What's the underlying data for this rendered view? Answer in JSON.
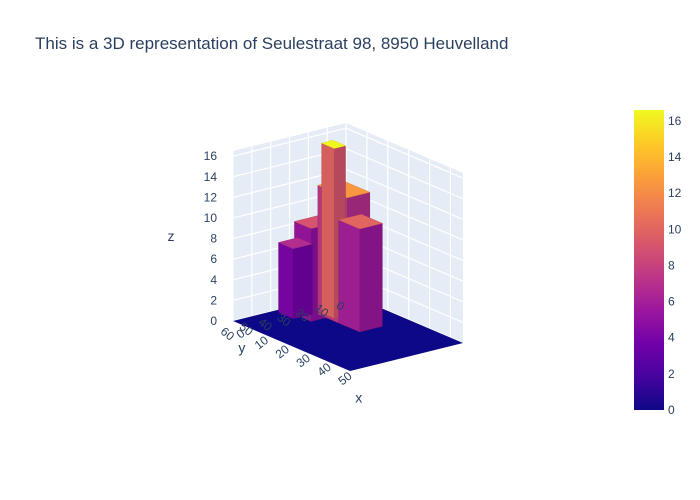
{
  "chart_data": {
    "type": "surface",
    "title": "This is a 3D representation of Seulestraat 98, 8950 Heuvelland",
    "xlabel": "x",
    "ylabel": "y",
    "zlabel": "z",
    "x_ticks": [
      "0",
      "10",
      "20",
      "30",
      "40",
      "50"
    ],
    "y_ticks": [
      "0",
      "10",
      "20",
      "30",
      "40",
      "50",
      "60"
    ],
    "z_ticks": [
      "0",
      "2",
      "4",
      "6",
      "8",
      "10",
      "12",
      "14",
      "16"
    ],
    "xlim": [
      0,
      56
    ],
    "ylim": [
      0,
      60
    ],
    "zlim": [
      0,
      16.5
    ],
    "colorbar": {
      "ticks": [
        "0",
        "2",
        "4",
        "6",
        "8",
        "10",
        "12",
        "14",
        "16"
      ],
      "range": [
        0,
        16.6
      ],
      "colorscale": [
        "#0d0887",
        "#46039f",
        "#7201a8",
        "#9c179e",
        "#bd3786",
        "#d8576b",
        "#ed7953",
        "#fb9f3a",
        "#fdca26",
        "#f0f921"
      ]
    },
    "surface_blocks": [
      {
        "name": "ground",
        "x": [
          0,
          56
        ],
        "y": [
          0,
          60
        ],
        "z": 0
      },
      {
        "name": "left-roof-low",
        "x": [
          2,
          9
        ],
        "y": [
          28,
          38
        ],
        "z": 6.8
      },
      {
        "name": "left-roof-ridge",
        "x": [
          6,
          14
        ],
        "y": [
          18,
          34
        ],
        "z": 9
      },
      {
        "name": "center-wall",
        "x": [
          10,
          24
        ],
        "y": [
          14,
          26
        ],
        "z": 12.5
      },
      {
        "name": "tower",
        "x": [
          10,
          16
        ],
        "y": [
          18,
          24
        ],
        "z": 16.5
      },
      {
        "name": "right-block",
        "x": [
          20,
          30
        ],
        "y": [
          14,
          26
        ],
        "z": 10
      },
      {
        "name": "back-bumps",
        "x": [
          10,
          20
        ],
        "y": [
          4,
          12
        ],
        "z": 8.5
      }
    ]
  }
}
